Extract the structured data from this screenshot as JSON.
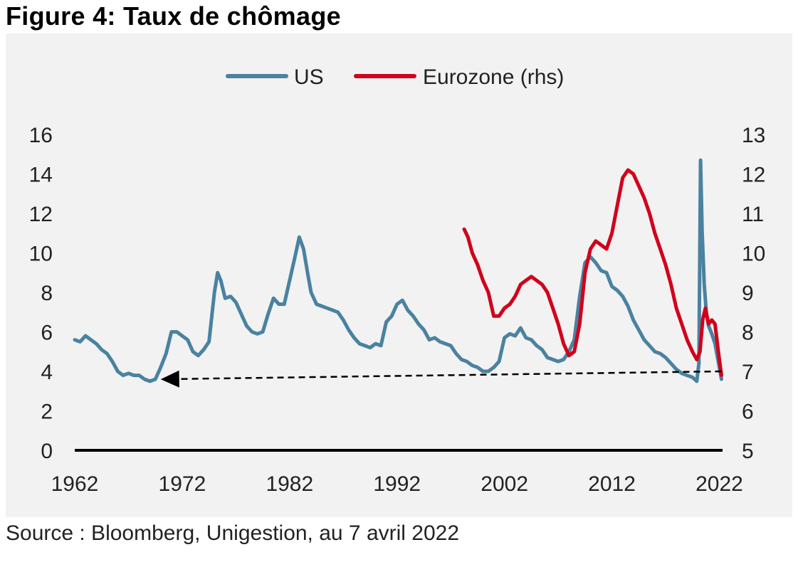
{
  "title": "Figure 4: Taux de chômage",
  "source": "Source : Bloomberg, Unigestion, au 7 avril 2022",
  "chart_data": {
    "type": "line",
    "x_range": [
      1962,
      2022.3
    ],
    "x_ticks": [
      1962,
      1972,
      1982,
      1992,
      2002,
      2012,
      2022
    ],
    "y_left": {
      "range": [
        0,
        16
      ],
      "ticks": [
        0,
        2,
        4,
        6,
        8,
        10,
        12,
        14,
        16
      ]
    },
    "y_right": {
      "range": [
        5,
        13
      ],
      "ticks": [
        5,
        6,
        7,
        8,
        9,
        10,
        11,
        12,
        13
      ]
    },
    "legend": {
      "placement": "top-center"
    },
    "grid": false,
    "colors": {
      "US": "#4a82a0",
      "Eurozone": "#d0021b",
      "zero_line": "#000000",
      "arrow": "#000000"
    },
    "series": [
      {
        "name": "US",
        "axis": "left",
        "x": [
          1962.0,
          1962.5,
          1963.0,
          1963.5,
          1964.0,
          1964.5,
          1965.0,
          1965.5,
          1966.0,
          1966.5,
          1967.0,
          1967.5,
          1968.0,
          1968.5,
          1969.0,
          1969.5,
          1970.0,
          1970.5,
          1971.0,
          1971.5,
          1972.0,
          1972.5,
          1973.0,
          1973.5,
          1974.0,
          1974.5,
          1975.0,
          1975.3,
          1975.6,
          1976.0,
          1976.5,
          1977.0,
          1977.5,
          1978.0,
          1978.5,
          1979.0,
          1979.5,
          1980.0,
          1980.5,
          1981.0,
          1981.5,
          1982.0,
          1982.5,
          1982.9,
          1983.3,
          1983.7,
          1984.0,
          1984.5,
          1985.0,
          1985.5,
          1986.0,
          1986.5,
          1987.0,
          1987.5,
          1988.0,
          1988.5,
          1989.0,
          1989.5,
          1990.0,
          1990.5,
          1991.0,
          1991.5,
          1992.0,
          1992.5,
          1993.0,
          1993.5,
          1994.0,
          1994.5,
          1995.0,
          1995.5,
          1996.0,
          1996.5,
          1997.0,
          1997.5,
          1998.0,
          1998.5,
          1999.0,
          1999.5,
          2000.0,
          2000.5,
          2001.0,
          2001.5,
          2002.0,
          2002.5,
          2003.0,
          2003.5,
          2004.0,
          2004.5,
          2005.0,
          2005.5,
          2006.0,
          2006.5,
          2007.0,
          2007.5,
          2008.0,
          2008.5,
          2009.0,
          2009.5,
          2010.0,
          2010.5,
          2011.0,
          2011.5,
          2012.0,
          2012.5,
          2013.0,
          2013.5,
          2014.0,
          2014.5,
          2015.0,
          2015.5,
          2016.0,
          2016.5,
          2017.0,
          2017.5,
          2018.0,
          2018.5,
          2019.0,
          2019.5,
          2019.9,
          2020.1,
          2020.25,
          2020.4,
          2020.6,
          2020.8,
          2021.0,
          2021.3,
          2021.6,
          2022.0,
          2022.2
        ],
        "y": [
          5.6,
          5.5,
          5.8,
          5.6,
          5.4,
          5.1,
          4.9,
          4.5,
          4.0,
          3.8,
          3.9,
          3.8,
          3.8,
          3.6,
          3.5,
          3.6,
          4.2,
          4.9,
          6.0,
          6.0,
          5.8,
          5.6,
          5.0,
          4.8,
          5.1,
          5.5,
          8.0,
          9.0,
          8.6,
          7.7,
          7.8,
          7.5,
          6.9,
          6.3,
          6.0,
          5.9,
          6.0,
          6.9,
          7.7,
          7.4,
          7.4,
          8.6,
          9.8,
          10.8,
          10.2,
          8.9,
          8.0,
          7.4,
          7.3,
          7.2,
          7.1,
          7.0,
          6.6,
          6.1,
          5.7,
          5.4,
          5.3,
          5.2,
          5.4,
          5.3,
          6.5,
          6.8,
          7.4,
          7.6,
          7.1,
          6.8,
          6.4,
          6.1,
          5.6,
          5.7,
          5.5,
          5.4,
          5.3,
          4.9,
          4.6,
          4.5,
          4.3,
          4.2,
          4.0,
          4.0,
          4.2,
          4.5,
          5.7,
          5.9,
          5.8,
          6.2,
          5.7,
          5.6,
          5.3,
          5.1,
          4.7,
          4.6,
          4.5,
          4.6,
          5.0,
          5.6,
          7.8,
          9.5,
          9.8,
          9.5,
          9.1,
          9.0,
          8.3,
          8.1,
          7.8,
          7.3,
          6.6,
          6.1,
          5.6,
          5.3,
          5.0,
          4.9,
          4.7,
          4.4,
          4.1,
          3.9,
          3.8,
          3.7,
          3.5,
          4.4,
          14.7,
          11.1,
          8.4,
          6.9,
          6.3,
          5.9,
          5.4,
          4.2,
          3.6
        ]
      },
      {
        "name": "Eurozone (rhs)",
        "axis": "right",
        "x": [
          1998.25,
          1998.6,
          1999.0,
          1999.5,
          2000.0,
          2000.5,
          2001.0,
          2001.5,
          2002.0,
          2002.5,
          2003.0,
          2003.5,
          2004.0,
          2004.5,
          2005.0,
          2005.5,
          2006.0,
          2006.5,
          2007.0,
          2007.5,
          2008.0,
          2008.5,
          2009.0,
          2009.5,
          2010.0,
          2010.5,
          2011.0,
          2011.5,
          2012.0,
          2012.5,
          2013.0,
          2013.5,
          2014.0,
          2014.5,
          2015.0,
          2015.5,
          2016.0,
          2016.5,
          2017.0,
          2017.5,
          2018.0,
          2018.5,
          2019.0,
          2019.5,
          2019.9,
          2020.2,
          2020.45,
          2020.7,
          2021.0,
          2021.3,
          2021.6,
          2022.0,
          2022.2
        ],
        "y": [
          10.6,
          10.4,
          10.0,
          9.7,
          9.3,
          9.0,
          8.4,
          8.4,
          8.6,
          8.7,
          8.9,
          9.2,
          9.3,
          9.4,
          9.3,
          9.2,
          9.0,
          8.6,
          8.2,
          7.7,
          7.4,
          7.5,
          8.2,
          9.5,
          10.1,
          10.3,
          10.2,
          10.1,
          10.5,
          11.2,
          11.9,
          12.1,
          12.0,
          11.7,
          11.4,
          11.0,
          10.5,
          10.1,
          9.7,
          9.2,
          8.6,
          8.2,
          7.8,
          7.5,
          7.3,
          7.5,
          8.3,
          8.6,
          8.2,
          8.3,
          8.2,
          7.3,
          6.9
        ]
      }
    ],
    "annotations": [
      {
        "type": "dashed-arrow",
        "from": {
          "x": 2022.2,
          "y": 4.0
        },
        "to": {
          "x": 1970.0,
          "y": 3.6
        },
        "axis": "left"
      }
    ]
  }
}
